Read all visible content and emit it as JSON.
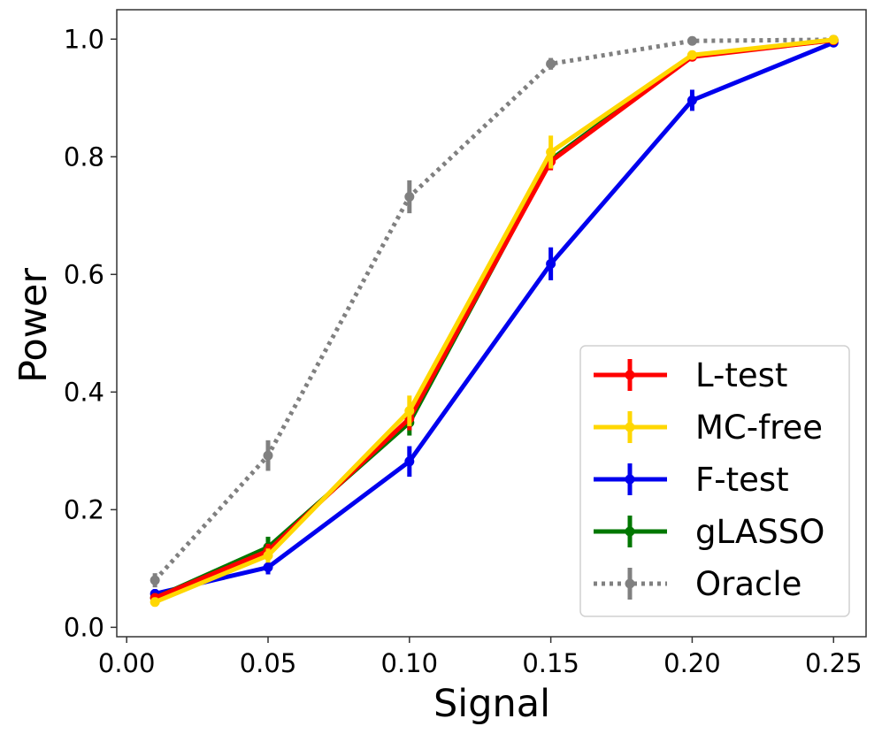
{
  "chart_data": {
    "type": "line",
    "title": "",
    "xlabel": "Signal",
    "ylabel": "Power",
    "xlim": [
      -0.0035,
      0.2615
    ],
    "ylim": [
      -0.016,
      1.05
    ],
    "grid": false,
    "legend_position": "lower-right",
    "x": [
      0.01,
      0.05,
      0.1,
      0.15,
      0.2,
      0.25
    ],
    "x_ticks": [
      0.0,
      0.05,
      0.1,
      0.15,
      0.2,
      0.25
    ],
    "x_tick_labels": [
      "0.00",
      "0.05",
      "0.10",
      "0.15",
      "0.20",
      "0.25"
    ],
    "y_ticks": [
      0.0,
      0.2,
      0.4,
      0.6,
      0.8,
      1.0
    ],
    "y_tick_labels": [
      "0.0",
      "0.2",
      "0.4",
      "0.6",
      "0.8",
      "1.0"
    ],
    "series": [
      {
        "name": "L-test",
        "key": "l-test",
        "color": "#ff0000",
        "style": "solid",
        "values": [
          0.05,
          0.13,
          0.355,
          0.792,
          0.97,
          0.998
        ],
        "errors": [
          0.008,
          0.012,
          0.02,
          0.015,
          0.006,
          0.002
        ]
      },
      {
        "name": "MC-free",
        "key": "mc-free",
        "color": "#ffd700",
        "style": "solid",
        "values": [
          0.043,
          0.122,
          0.368,
          0.808,
          0.973,
          0.999
        ],
        "errors": [
          0.008,
          0.012,
          0.026,
          0.028,
          0.006,
          0.002
        ]
      },
      {
        "name": "F-test",
        "key": "f-test",
        "color": "#0000ee",
        "style": "solid",
        "values": [
          0.057,
          0.102,
          0.282,
          0.618,
          0.896,
          0.994
        ],
        "errors": [
          0.008,
          0.012,
          0.026,
          0.028,
          0.018,
          0.003
        ]
      },
      {
        "name": "gLASSO",
        "key": "glasso",
        "color": "#007700",
        "style": "solid",
        "values": [
          0.05,
          0.136,
          0.348,
          0.795,
          0.972,
          0.998
        ],
        "errors": [
          0.008,
          0.018,
          0.022,
          0.015,
          0.006,
          0.002
        ]
      },
      {
        "name": "Oracle",
        "key": "oracle",
        "color": "#808080",
        "style": "dotted",
        "values": [
          0.08,
          0.292,
          0.732,
          0.958,
          0.997,
          0.999
        ],
        "errors": [
          0.012,
          0.026,
          0.028,
          0.01,
          0.003,
          0.001
        ]
      }
    ]
  }
}
